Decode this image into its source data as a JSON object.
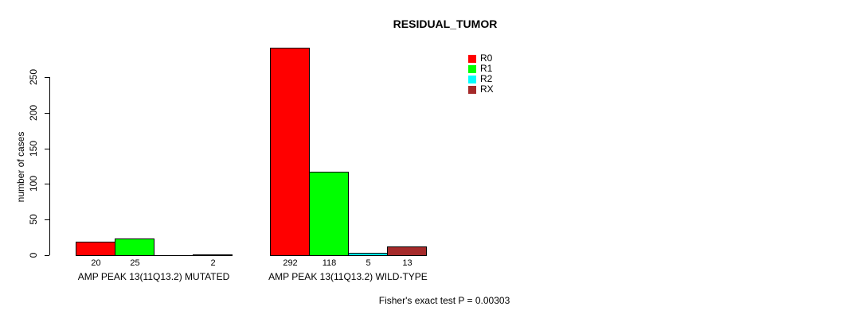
{
  "chart_data": {
    "type": "bar",
    "title": "RESIDUAL_TUMOR",
    "xlabel": "",
    "ylabel": "number of cases",
    "ylim": [
      0,
      292
    ],
    "yticks": [
      0,
      50,
      100,
      150,
      200,
      250
    ],
    "grid": false,
    "legend_position": "top-right",
    "series": [
      {
        "name": "R0",
        "color": "#FF0000"
      },
      {
        "name": "R1",
        "color": "#00FF00"
      },
      {
        "name": "R2",
        "color": "#00FFFF"
      },
      {
        "name": "RX",
        "color": "#A52A2A"
      }
    ],
    "groups": [
      {
        "label": "AMP PEAK 13(11Q13.2) MUTATED",
        "values": [
          20,
          25,
          0,
          2
        ],
        "bar_labels": [
          "20",
          "25",
          "",
          "2"
        ]
      },
      {
        "label": "AMP PEAK 13(11Q13.2) WILD-TYPE",
        "values": [
          292,
          118,
          5,
          13
        ],
        "bar_labels": [
          "292",
          "118",
          "5",
          "13"
        ]
      }
    ],
    "annotation": "Fisher's exact test P = 0.00303"
  }
}
